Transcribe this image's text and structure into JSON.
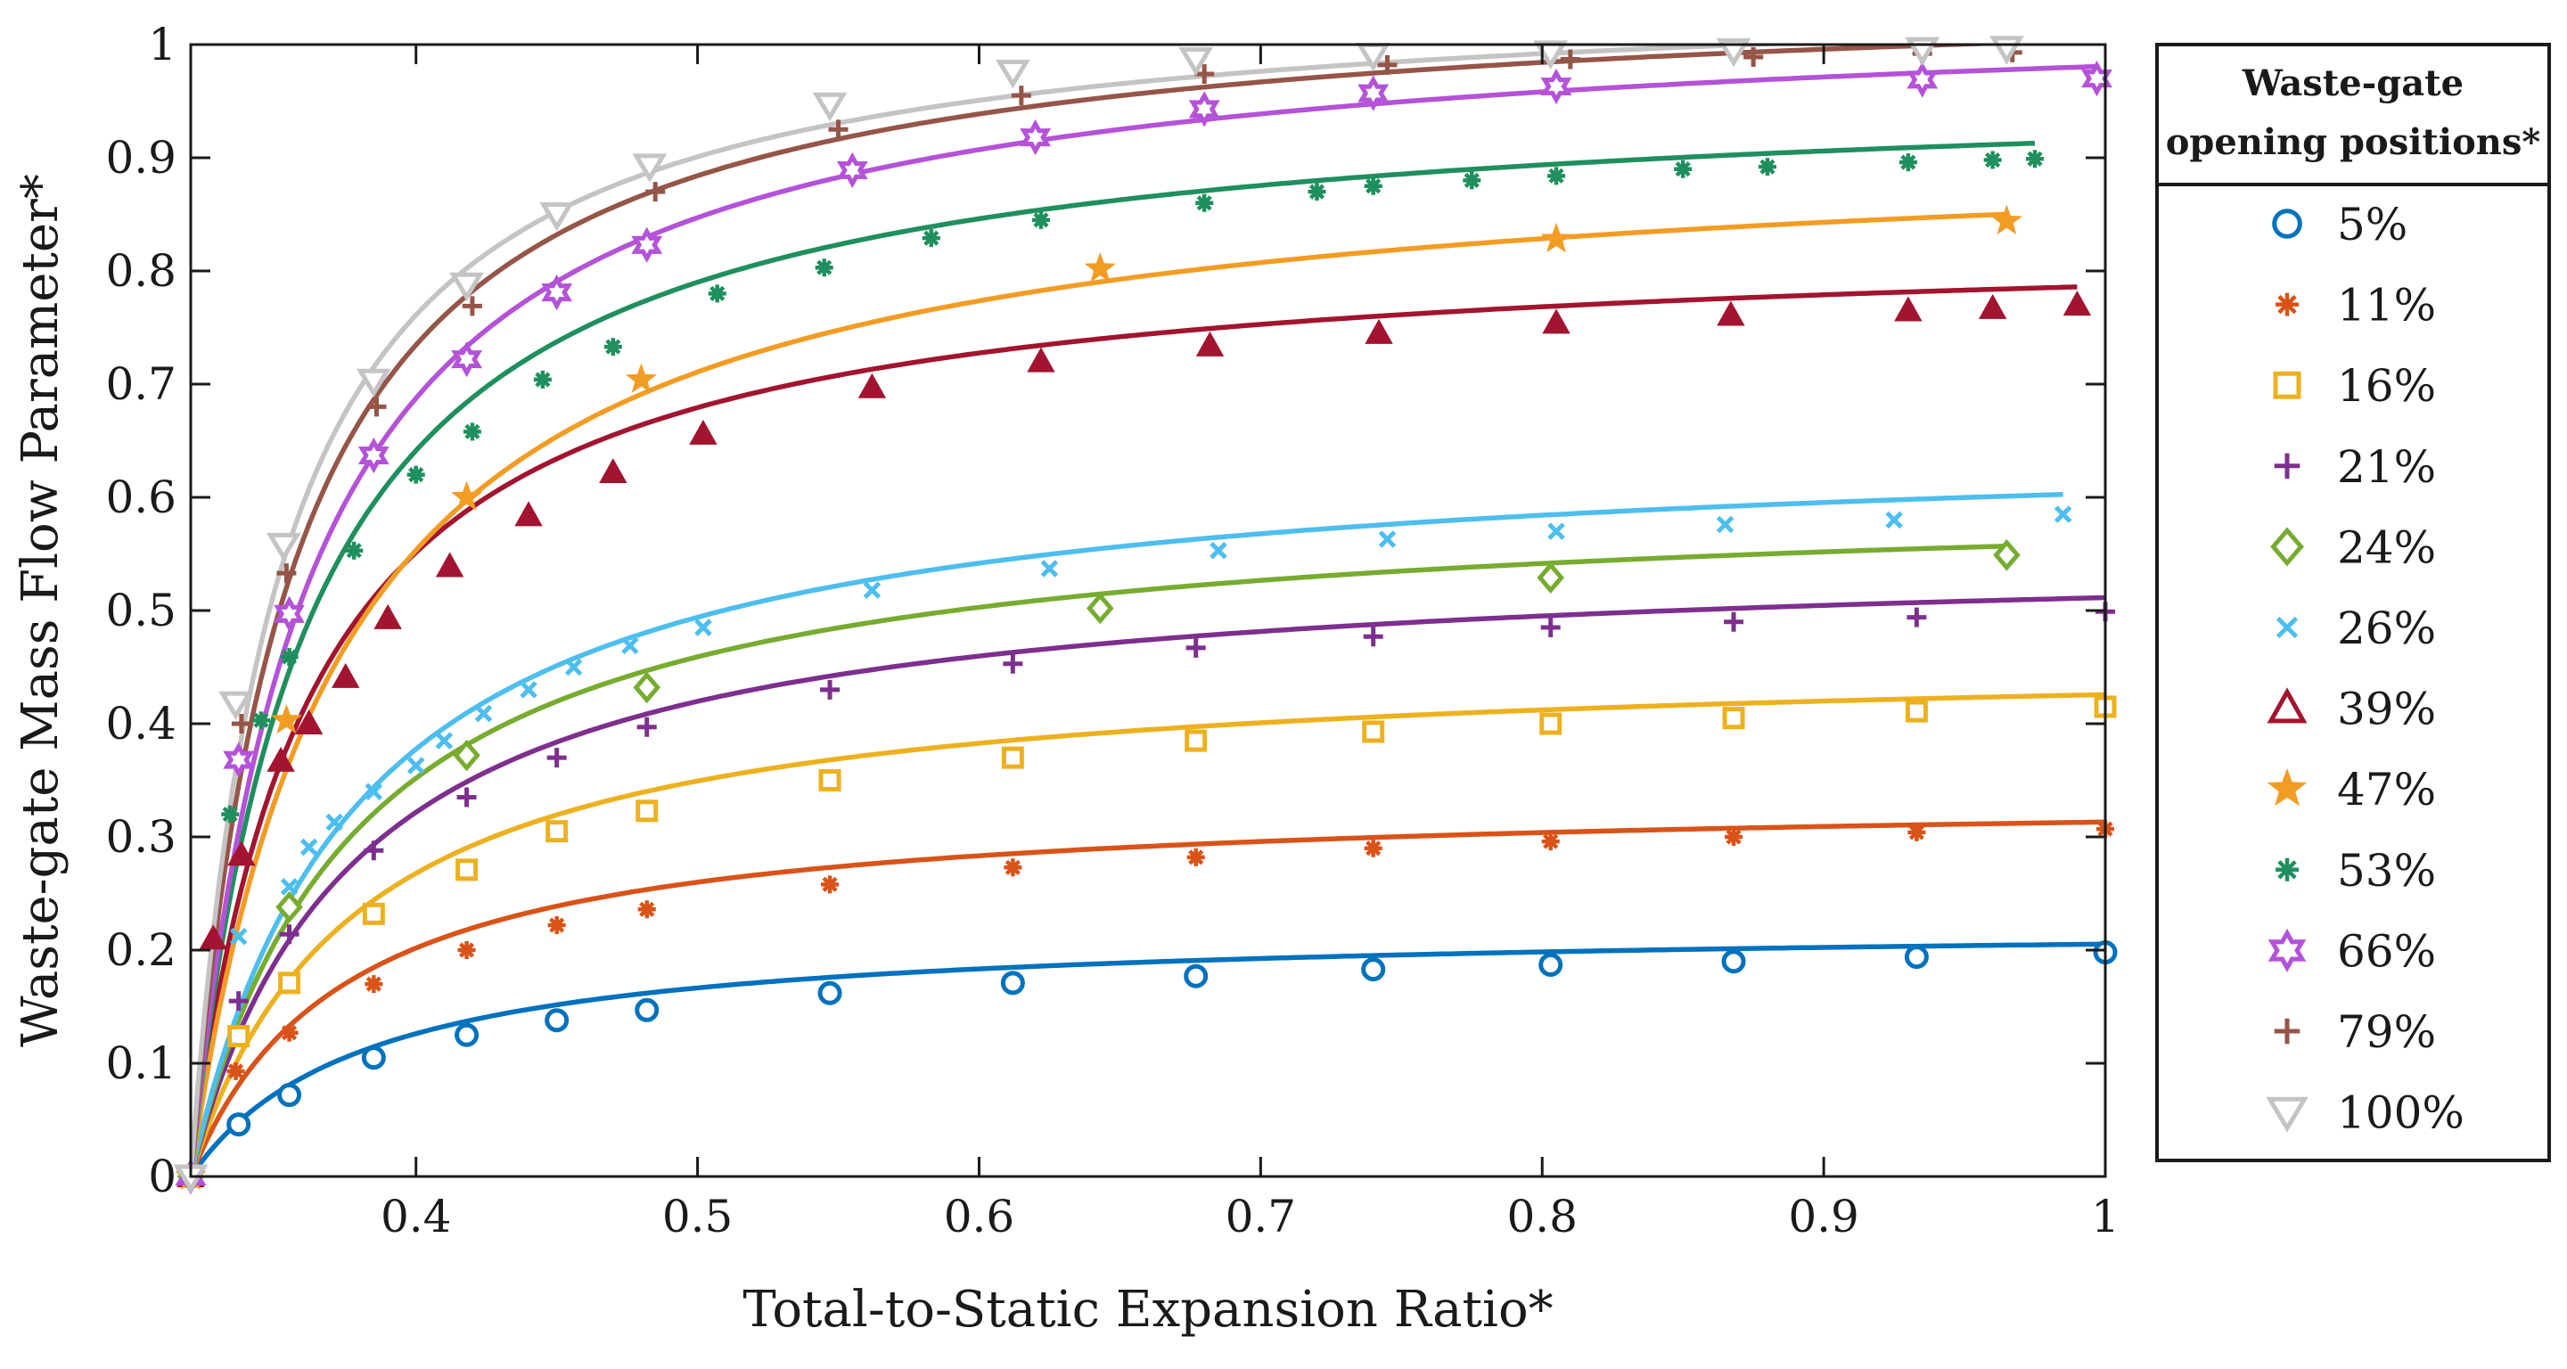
{
  "chart_data": {
    "type": "line",
    "title": "",
    "xlabel": "Total-to-Static Expansion Ratio*",
    "ylabel": "Waste-gate Mass Flow Parameter*",
    "xlim": [
      0.32,
      1.0
    ],
    "ylim": [
      0,
      1.0
    ],
    "xticks": [
      "0.4",
      "0.5",
      "0.6",
      "0.7",
      "0.8",
      "0.9",
      "1"
    ],
    "yticks": [
      "0",
      "0.1",
      "0.2",
      "0.3",
      "0.4",
      "0.5",
      "0.6",
      "0.7",
      "0.8",
      "0.9",
      "1"
    ],
    "grid": false,
    "legend": {
      "title_line1": "Waste-gate",
      "title_line2": "opening positions*",
      "placement": "outside-right"
    },
    "series": [
      {
        "name": "5%",
        "color": "#0072BD",
        "marker": "circle",
        "x0": 0.32,
        "ymax": 0.224,
        "k": 0.062,
        "points": [
          [
            0.337,
            0.046
          ],
          [
            0.355,
            0.072
          ],
          [
            0.385,
            0.105
          ],
          [
            0.418,
            0.125
          ],
          [
            0.45,
            0.138
          ],
          [
            0.482,
            0.147
          ],
          [
            0.547,
            0.162
          ],
          [
            0.612,
            0.171
          ],
          [
            0.677,
            0.177
          ],
          [
            0.74,
            0.183
          ],
          [
            0.803,
            0.187
          ],
          [
            0.868,
            0.19
          ],
          [
            0.933,
            0.194
          ],
          [
            1.0,
            0.198
          ]
        ]
      },
      {
        "name": "11%",
        "color": "#D95319",
        "marker": "asterisk",
        "x0": 0.32,
        "ymax": 0.338,
        "k": 0.054,
        "points": [
          [
            0.336,
            0.093
          ],
          [
            0.355,
            0.127
          ],
          [
            0.385,
            0.17
          ],
          [
            0.418,
            0.2
          ],
          [
            0.45,
            0.222
          ],
          [
            0.482,
            0.236
          ],
          [
            0.547,
            0.258
          ],
          [
            0.612,
            0.273
          ],
          [
            0.677,
            0.282
          ],
          [
            0.74,
            0.29
          ],
          [
            0.803,
            0.296
          ],
          [
            0.868,
            0.3
          ],
          [
            0.933,
            0.304
          ],
          [
            1.0,
            0.307
          ]
        ]
      },
      {
        "name": "16%",
        "color": "#EDB120",
        "marker": "square",
        "x0": 0.32,
        "ymax": 0.462,
        "k": 0.058,
        "points": [
          [
            0.337,
            0.124
          ],
          [
            0.355,
            0.171
          ],
          [
            0.385,
            0.232
          ],
          [
            0.418,
            0.271
          ],
          [
            0.45,
            0.305
          ],
          [
            0.482,
            0.323
          ],
          [
            0.547,
            0.35
          ],
          [
            0.612,
            0.37
          ],
          [
            0.677,
            0.385
          ],
          [
            0.74,
            0.393
          ],
          [
            0.803,
            0.4
          ],
          [
            0.868,
            0.405
          ],
          [
            0.933,
            0.411
          ],
          [
            1.0,
            0.415
          ]
        ]
      },
      {
        "name": "21%",
        "color": "#7E2F8E",
        "marker": "plus",
        "x0": 0.32,
        "ymax": 0.555,
        "k": 0.058,
        "points": [
          [
            0.337,
            0.155
          ],
          [
            0.355,
            0.214
          ],
          [
            0.385,
            0.288
          ],
          [
            0.418,
            0.335
          ],
          [
            0.45,
            0.37
          ],
          [
            0.482,
            0.397
          ],
          [
            0.547,
            0.43
          ],
          [
            0.612,
            0.453
          ],
          [
            0.677,
            0.467
          ],
          [
            0.74,
            0.477
          ],
          [
            0.803,
            0.485
          ],
          [
            0.868,
            0.49
          ],
          [
            0.933,
            0.494
          ],
          [
            1.0,
            0.499
          ]
        ]
      },
      {
        "name": "24%",
        "color": "#77AC30",
        "marker": "diamond",
        "x0": 0.32,
        "ymax": 0.607,
        "k": 0.058,
        "points": [
          [
            0.355,
            0.238
          ],
          [
            0.418,
            0.372
          ],
          [
            0.482,
            0.432
          ],
          [
            0.643,
            0.502
          ],
          [
            0.803,
            0.529
          ],
          [
            0.965,
            0.549
          ]
        ]
      },
      {
        "name": "26%",
        "color": "#4DBEEE",
        "marker": "x",
        "x0": 0.32,
        "ymax": 0.656,
        "k": 0.059,
        "points": [
          [
            0.337,
            0.212
          ],
          [
            0.355,
            0.256
          ],
          [
            0.362,
            0.291
          ],
          [
            0.371,
            0.313
          ],
          [
            0.385,
            0.34
          ],
          [
            0.4,
            0.363
          ],
          [
            0.41,
            0.385
          ],
          [
            0.424,
            0.409
          ],
          [
            0.44,
            0.43
          ],
          [
            0.456,
            0.45
          ],
          [
            0.476,
            0.469
          ],
          [
            0.502,
            0.485
          ],
          [
            0.562,
            0.518
          ],
          [
            0.625,
            0.537
          ],
          [
            0.685,
            0.553
          ],
          [
            0.745,
            0.563
          ],
          [
            0.805,
            0.57
          ],
          [
            0.865,
            0.576
          ],
          [
            0.925,
            0.58
          ],
          [
            0.985,
            0.585
          ]
        ]
      },
      {
        "name": "39%",
        "color": "#A2142F",
        "marker": "triangle-up",
        "x0": 0.32,
        "ymax": 0.834,
        "k": 0.041,
        "points": [
          [
            0.328,
            0.21
          ],
          [
            0.338,
            0.284
          ],
          [
            0.352,
            0.367
          ],
          [
            0.362,
            0.4
          ],
          [
            0.375,
            0.441
          ],
          [
            0.39,
            0.493
          ],
          [
            0.412,
            0.539
          ],
          [
            0.44,
            0.584
          ],
          [
            0.47,
            0.622
          ],
          [
            0.502,
            0.656
          ],
          [
            0.562,
            0.697
          ],
          [
            0.622,
            0.72
          ],
          [
            0.682,
            0.734
          ],
          [
            0.742,
            0.745
          ],
          [
            0.805,
            0.754
          ],
          [
            0.867,
            0.761
          ],
          [
            0.93,
            0.765
          ],
          [
            0.96,
            0.767
          ],
          [
            0.99,
            0.77
          ]
        ]
      },
      {
        "name": "47%",
        "color": "#F39C24",
        "marker": "star",
        "x0": 0.32,
        "ymax": 0.92,
        "k": 0.053,
        "points": [
          [
            0.354,
            0.403
          ],
          [
            0.418,
            0.6
          ],
          [
            0.48,
            0.704
          ],
          [
            0.643,
            0.802
          ],
          [
            0.805,
            0.828
          ],
          [
            0.965,
            0.844
          ]
        ]
      },
      {
        "name": "53%",
        "color": "#1F8F5E",
        "marker": "asterisk",
        "x0": 0.32,
        "ymax": 0.97,
        "k": 0.041,
        "points": [
          [
            0.334,
            0.32
          ],
          [
            0.345,
            0.403
          ],
          [
            0.355,
            0.459
          ],
          [
            0.378,
            0.553
          ],
          [
            0.4,
            0.62
          ],
          [
            0.42,
            0.658
          ],
          [
            0.445,
            0.704
          ],
          [
            0.47,
            0.733
          ],
          [
            0.507,
            0.78
          ],
          [
            0.545,
            0.803
          ],
          [
            0.583,
            0.829
          ],
          [
            0.622,
            0.845
          ],
          [
            0.68,
            0.86
          ],
          [
            0.72,
            0.87
          ],
          [
            0.74,
            0.875
          ],
          [
            0.775,
            0.88
          ],
          [
            0.805,
            0.884
          ],
          [
            0.85,
            0.89
          ],
          [
            0.88,
            0.892
          ],
          [
            0.93,
            0.896
          ],
          [
            0.96,
            0.898
          ],
          [
            0.975,
            0.899
          ]
        ]
      },
      {
        "name": "66%",
        "color": "#B452D8",
        "marker": "hexagram",
        "x0": 0.32,
        "ymax": 1.04,
        "k": 0.041,
        "points": [
          [
            0.337,
            0.368
          ],
          [
            0.355,
            0.497
          ],
          [
            0.385,
            0.637
          ],
          [
            0.418,
            0.722
          ],
          [
            0.45,
            0.781
          ],
          [
            0.482,
            0.823
          ],
          [
            0.555,
            0.889
          ],
          [
            0.62,
            0.918
          ],
          [
            0.68,
            0.943
          ],
          [
            0.74,
            0.957
          ],
          [
            0.805,
            0.963
          ],
          [
            0.935,
            0.969
          ],
          [
            0.997,
            0.97
          ]
        ]
      },
      {
        "name": "79%",
        "color": "#955548",
        "marker": "plus",
        "x0": 0.32,
        "ymax": 1.056,
        "k": 0.035,
        "points": [
          [
            0.338,
            0.4
          ],
          [
            0.354,
            0.533
          ],
          [
            0.386,
            0.68
          ],
          [
            0.42,
            0.769
          ],
          [
            0.485,
            0.87
          ],
          [
            0.55,
            0.925
          ],
          [
            0.615,
            0.955
          ],
          [
            0.68,
            0.974
          ],
          [
            0.745,
            0.982
          ],
          [
            0.81,
            0.987
          ],
          [
            0.875,
            0.989
          ],
          [
            0.935,
            0.992
          ],
          [
            0.967,
            0.993
          ]
        ]
      },
      {
        "name": "100%",
        "color": "#C4C4C4",
        "marker": "triangle-down",
        "x0": 0.32,
        "ymax": 1.056,
        "k": 0.031,
        "points": [
          [
            0.336,
            0.418
          ],
          [
            0.353,
            0.558
          ],
          [
            0.385,
            0.703
          ],
          [
            0.418,
            0.788
          ],
          [
            0.45,
            0.85
          ],
          [
            0.483,
            0.893
          ],
          [
            0.547,
            0.947
          ],
          [
            0.612,
            0.976
          ],
          [
            0.677,
            0.987
          ],
          [
            0.74,
            0.991
          ],
          [
            0.803,
            0.993
          ],
          [
            0.868,
            0.995
          ],
          [
            0.935,
            0.996
          ],
          [
            0.965,
            0.997
          ]
        ]
      }
    ]
  }
}
